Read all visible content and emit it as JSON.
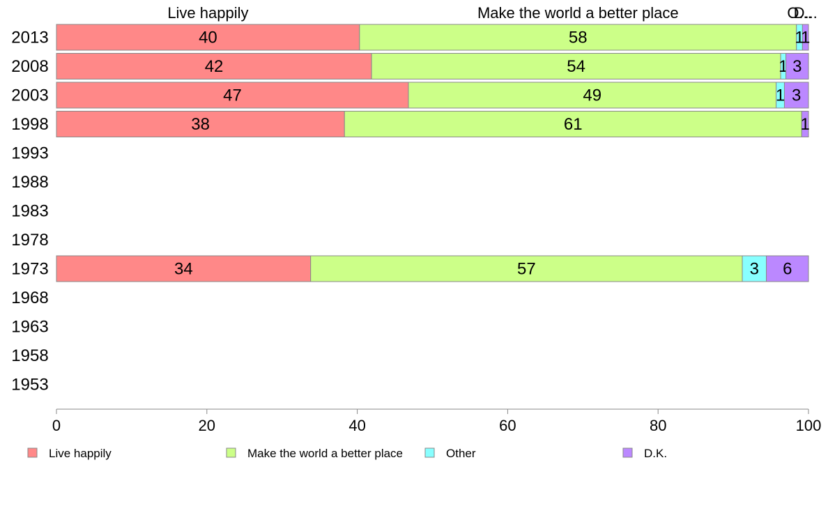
{
  "chart_data": {
    "type": "bar",
    "orientation": "horizontal",
    "stacked": true,
    "categories": [
      "2013",
      "2008",
      "2003",
      "1998",
      "1993",
      "1988",
      "1983",
      "1978",
      "1973",
      "1968",
      "1963",
      "1958",
      "1953"
    ],
    "series": [
      {
        "name": "Live happily",
        "color": "#ff8888",
        "values": [
          40.3,
          41.9,
          46.8,
          38.3,
          null,
          null,
          null,
          null,
          33.8,
          null,
          null,
          null,
          null
        ]
      },
      {
        "name": "Make the world a better place",
        "color": "#ccff88",
        "values": [
          58.1,
          54.4,
          48.9,
          60.8,
          null,
          null,
          null,
          null,
          57.4,
          null,
          null,
          null,
          null
        ]
      },
      {
        "name": "Other",
        "color": "#88ffff",
        "values": [
          0.8,
          0.7,
          1.1,
          0.0,
          null,
          null,
          null,
          null,
          3.2,
          null,
          null,
          null,
          null
        ]
      },
      {
        "name": "D.K.",
        "color": "#bb88ff",
        "values": [
          0.8,
          3.0,
          3.2,
          0.9,
          null,
          null,
          null,
          null,
          5.6,
          null,
          null,
          null,
          null
        ]
      }
    ],
    "data_labels": [
      [
        "40",
        "58",
        "1",
        "1"
      ],
      [
        "42",
        "54",
        "1",
        "3"
      ],
      [
        "47",
        "49",
        "1",
        "3"
      ],
      [
        "38",
        "61",
        "",
        "1"
      ],
      [],
      [],
      [],
      [],
      [
        "34",
        "57",
        "3",
        "6"
      ],
      [],
      [],
      [],
      []
    ],
    "top_labels": [
      "Live happily",
      "Make the world a better place",
      "O...",
      "D..."
    ],
    "xlim": [
      0,
      100
    ],
    "xticks": [
      "0",
      "20",
      "40",
      "60",
      "80",
      "100"
    ],
    "grid": false,
    "legend": "bottom"
  }
}
